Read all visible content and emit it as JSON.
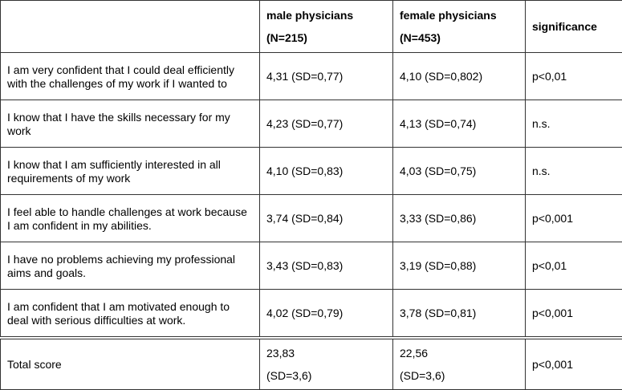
{
  "header": {
    "blank": "",
    "male_line1": "male physicians",
    "male_line2": "(N=215)",
    "female_line1": "female physicians",
    "female_line2": "(N=453)",
    "significance": "significance"
  },
  "rows": [
    {
      "item": "I am very confident that I could deal efficiently with the challenges of my work if I wanted to",
      "male": "4,31 (SD=0,77)",
      "female": "4,10 (SD=0,802)",
      "sig": "p<0,01"
    },
    {
      "item": "I know that I have the skills necessary for my work",
      "male": "4,23 (SD=0,77)",
      "female": "4,13 (SD=0,74)",
      "sig": "n.s."
    },
    {
      "item": "I know that I am sufficiently interested in all requirements of my work",
      "male": "4,10 (SD=0,83)",
      "female": "4,03 (SD=0,75)",
      "sig": "n.s."
    },
    {
      "item": "I feel able to handle challenges at work because I am confident in my abilities.",
      "male": "3,74 (SD=0,84)",
      "female": "3,33 (SD=0,86)",
      "sig": "p<0,001"
    },
    {
      "item": "I have no problems achieving my professional aims and goals.",
      "male": "3,43 (SD=0,83)",
      "female": "3,19 (SD=0,88)",
      "sig": "p<0,01"
    },
    {
      "item": "I am confident that I am motivated enough to deal with serious difficulties at work.",
      "male": "4,02 (SD=0,79)",
      "female": "3,78 (SD=0,81)",
      "sig": "p<0,001"
    }
  ],
  "total": {
    "label": "Total score",
    "male_mean": "23,83",
    "male_sd": "(SD=3,6)",
    "female_mean": "22,56",
    "female_sd": "(SD=3,6)",
    "sig": "p<0,001"
  }
}
